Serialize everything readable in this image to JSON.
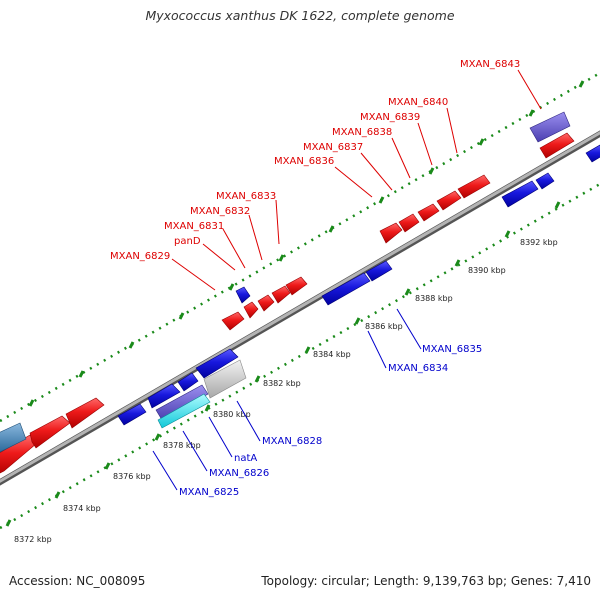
{
  "title": "Myxococcus xanthus DK 1622, complete genome",
  "footer": {
    "accession": "Accession: NC_008095",
    "summary": "Topology: circular; Length: 9,139,763 bp; Genes: 7,410"
  },
  "colors": {
    "forward": "#e8141a",
    "reverse": "#1414d2",
    "forward_label": "#dd0000",
    "reverse_label": "#0000cc",
    "backbone": "#8c8c8c",
    "dots": "#1a8a1a",
    "selected": "#6a5acd",
    "highlight": "#3ee0ee",
    "rna": "#4682b4",
    "pseudo": "#c8c8c8"
  },
  "scale_ticks": [
    "8372 kbp",
    "8374 kbp",
    "8376 kbp",
    "8378 kbp",
    "8380 kbp",
    "8382 kbp",
    "8384 kbp",
    "8386 kbp",
    "8388 kbp",
    "8390 kbp",
    "8392 kbp"
  ],
  "forward_labels": [
    "MXAN_6829",
    "panD",
    "MXAN_6831",
    "MXAN_6832",
    "MXAN_6833",
    "MXAN_6836",
    "MXAN_6837",
    "MXAN_6838",
    "MXAN_6839",
    "MXAN_6840",
    "MXAN_6843"
  ],
  "reverse_labels": [
    "MXAN_6825",
    "MXAN_6826",
    "natA",
    "MXAN_6828",
    "MXAN_6834",
    "MXAN_6835"
  ]
}
